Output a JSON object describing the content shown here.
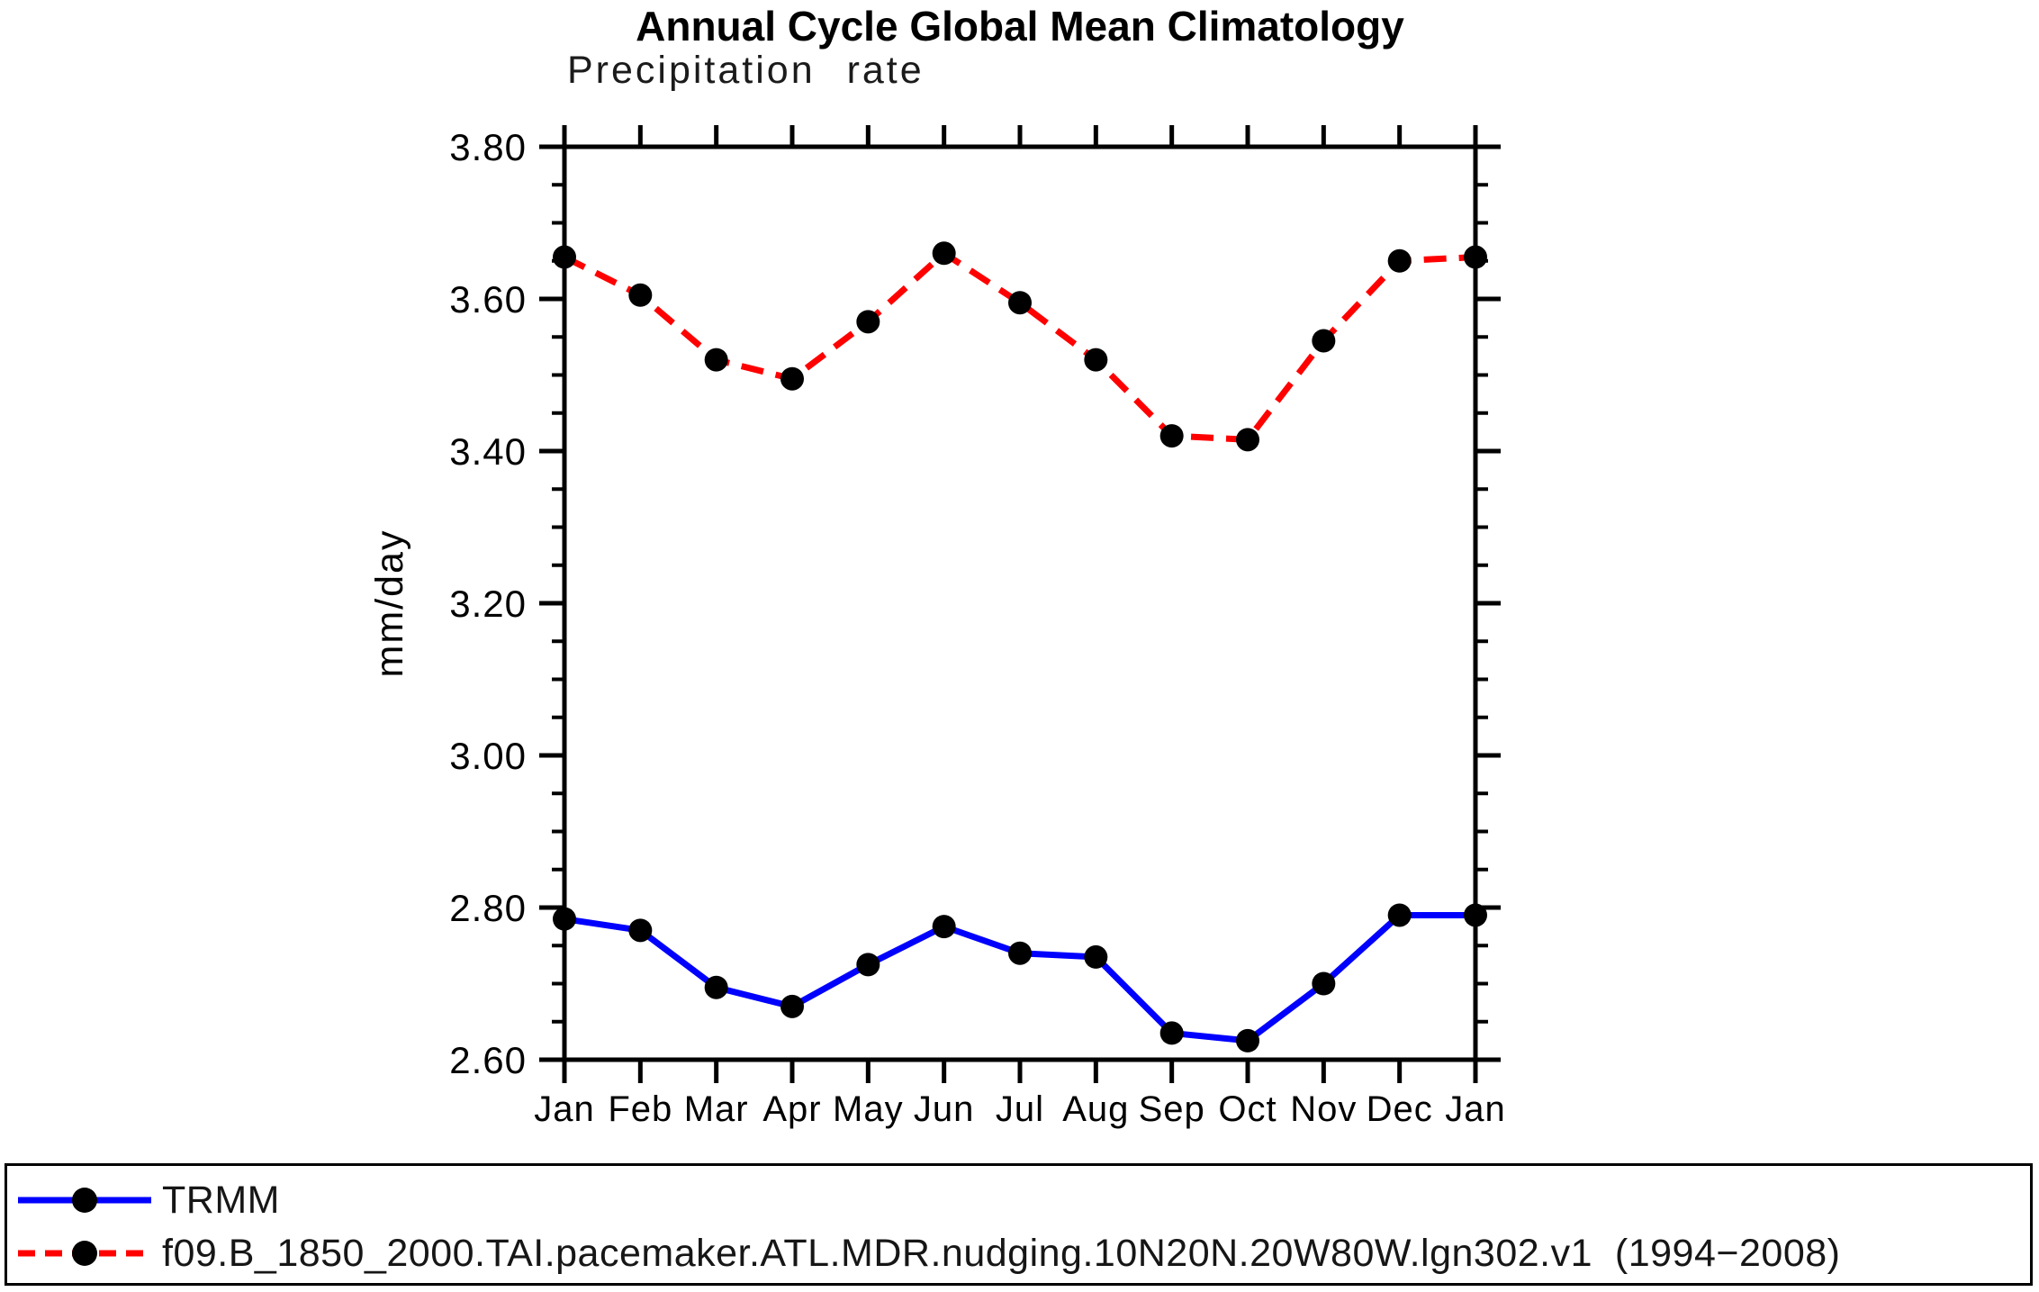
{
  "figure": {
    "title": "Annual Cycle Global Mean Climatology",
    "subtitle": "Precipitation rate"
  },
  "chart_data": {
    "type": "line",
    "title": "Annual Cycle Global Mean Climatology",
    "subtitle": "Precipitation rate",
    "xlabel": "",
    "ylabel": "mm/day",
    "categories": [
      "Jan",
      "Feb",
      "Mar",
      "Apr",
      "May",
      "Jun",
      "Jul",
      "Aug",
      "Sep",
      "Oct",
      "Nov",
      "Dec",
      "Jan"
    ],
    "ylim": [
      2.6,
      3.8
    ],
    "ytick_major_interval": 0.2,
    "ytick_minor_interval": 0.05,
    "ytick_labels": [
      "2.60",
      "2.80",
      "3.00",
      "3.20",
      "3.40",
      "3.60",
      "3.80"
    ],
    "grid": false,
    "legend_position": "bottom-outside-box",
    "axis_color": "#000000",
    "text_color": "#000000",
    "series": [
      {
        "name": "TRMM",
        "color": "#0000ff",
        "line_style": "solid",
        "marker": "filled-circle",
        "marker_color": "#000000",
        "values": [
          2.785,
          2.77,
          2.695,
          2.67,
          2.725,
          2.775,
          2.74,
          2.735,
          2.635,
          2.625,
          2.7,
          2.79,
          2.79
        ]
      },
      {
        "name": "f09.B_1850_2000.TAI.pacemaker.ATL.MDR.nudging.10N20N.20W80W.lgn302.v1  (1994−2008)",
        "color": "#ff0000",
        "line_style": "dashed",
        "marker": "filled-circle",
        "marker_color": "#000000",
        "values": [
          3.655,
          3.605,
          3.52,
          3.495,
          3.57,
          3.66,
          3.595,
          3.52,
          3.42,
          3.415,
          3.545,
          3.65,
          3.655
        ]
      }
    ]
  }
}
